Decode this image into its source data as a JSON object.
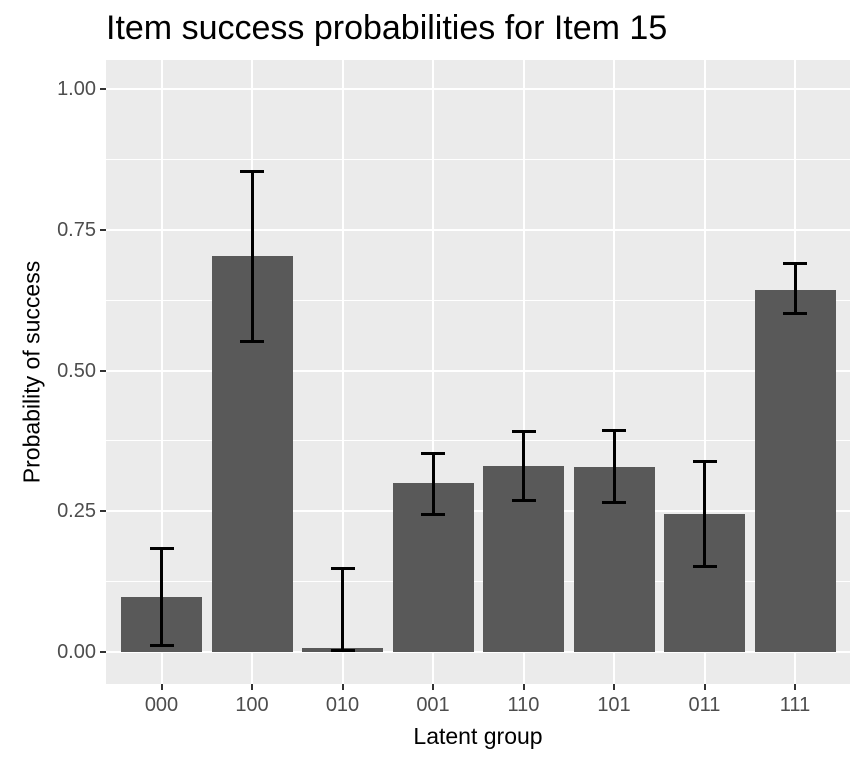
{
  "chart_data": {
    "type": "bar",
    "title": "Item success probabilities for Item 15",
    "xlabel": "Latent group",
    "ylabel": "Probability of success",
    "categories": [
      "000",
      "100",
      "010",
      "001",
      "110",
      "101",
      "011",
      "111"
    ],
    "series": [
      {
        "name": "probability",
        "values": [
          0.098,
          0.703,
          0.007,
          0.3,
          0.33,
          0.329,
          0.245,
          0.643
        ],
        "error_low": [
          0.011,
          0.551,
          0.001,
          0.243,
          0.268,
          0.265,
          0.151,
          0.6
        ],
        "error_high": [
          0.185,
          0.854,
          0.149,
          0.353,
          0.393,
          0.394,
          0.339,
          0.691
        ]
      }
    ],
    "ylim": [
      0,
      1
    ],
    "y_ticks": {
      "values": [
        0.0,
        0.25,
        0.5,
        0.75,
        1.0
      ],
      "labels": [
        "0.00",
        "0.25",
        "0.50",
        "0.75",
        "1.00"
      ]
    },
    "y_minor_ticks": [
      0.125,
      0.375,
      0.625,
      0.875
    ],
    "grid": "major-and-minor, white on gray panel",
    "legend": "none",
    "colors": {
      "bar_fill": "#595959",
      "error_bar": "#000000",
      "panel_background": "#ebebeb",
      "grid_major": "#ffffff",
      "grid_minor": "#ffffff",
      "tick_mark": "#333333",
      "tick_label_text": "#4d4d4d",
      "title_text": "#000000",
      "figure_background": "#ffffff"
    }
  }
}
